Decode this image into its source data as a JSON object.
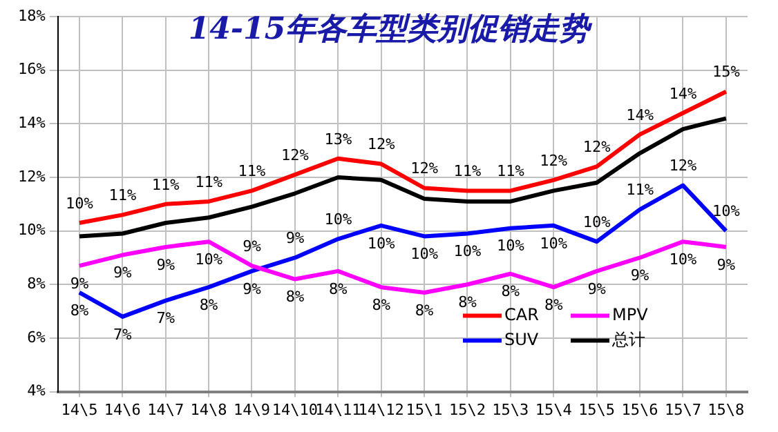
{
  "chart_data": {
    "type": "line",
    "title": "14-15年各车型类别促销走势",
    "categories": [
      "14\\5",
      "14\\6",
      "14\\7",
      "14\\8",
      "14\\9",
      "14\\10",
      "14\\11",
      "14\\12",
      "15\\1",
      "15\\2",
      "15\\3",
      "15\\4",
      "15\\5",
      "15\\6",
      "15\\7",
      "15\\8"
    ],
    "series": [
      {
        "name": "CAR",
        "color": "#ff0000",
        "values": [
          10.3,
          10.6,
          11.0,
          11.1,
          11.5,
          12.1,
          12.7,
          12.5,
          11.6,
          11.5,
          11.5,
          11.9,
          12.4,
          13.6,
          14.4,
          15.2
        ],
        "value_labels": [
          "10%",
          "11%",
          "11%",
          "11%",
          "11%",
          "12%",
          "13%",
          "12%",
          "12%",
          "11%",
          "11%",
          "12%",
          "12%",
          "14%",
          "14%",
          "15%"
        ]
      },
      {
        "name": "MPV",
        "color": "#ff00ff",
        "values": [
          8.7,
          9.1,
          9.4,
          9.6,
          8.7,
          8.2,
          8.5,
          7.9,
          7.7,
          8.0,
          8.4,
          7.9,
          8.5,
          9.0,
          9.6,
          9.4
        ],
        "value_labels": [
          "9%",
          "9%",
          "9%",
          "10%",
          "9%",
          "8%",
          "8%",
          "8%",
          "8%",
          "8%",
          "8%",
          "8%",
          "9%",
          "9%",
          "10%",
          "9%"
        ]
      },
      {
        "name": "SUV",
        "color": "#0000ff",
        "values": [
          7.7,
          6.8,
          7.4,
          7.9,
          8.5,
          9.0,
          9.7,
          10.2,
          9.8,
          9.9,
          10.1,
          10.2,
          9.6,
          10.8,
          11.7,
          10.0
        ],
        "value_labels": [
          "8%",
          "7%",
          "7%",
          "8%",
          "9%",
          "9%",
          "10%",
          "10%",
          "10%",
          "10%",
          "10%",
          "10%",
          "10%",
          "11%",
          "12%",
          "10%"
        ]
      },
      {
        "name": "总计",
        "color": "#000000",
        "values": [
          9.8,
          9.9,
          10.3,
          10.5,
          10.9,
          11.4,
          12.0,
          11.9,
          11.2,
          11.1,
          11.1,
          11.5,
          11.8,
          12.9,
          13.8,
          14.2
        ]
      }
    ],
    "ylim": [
      4,
      18
    ],
    "yticks": [
      {
        "value": 4,
        "label": "4%"
      },
      {
        "value": 6,
        "label": "6%"
      },
      {
        "value": 8,
        "label": "8%"
      },
      {
        "value": 10,
        "label": "10%"
      },
      {
        "value": 12,
        "label": "12%"
      },
      {
        "value": 14,
        "label": "14%"
      },
      {
        "value": 16,
        "label": "16%"
      },
      {
        "value": 18,
        "label": "18%"
      }
    ],
    "grid": true,
    "legend": "bottom right",
    "marker": "none",
    "line_style": "solid"
  }
}
